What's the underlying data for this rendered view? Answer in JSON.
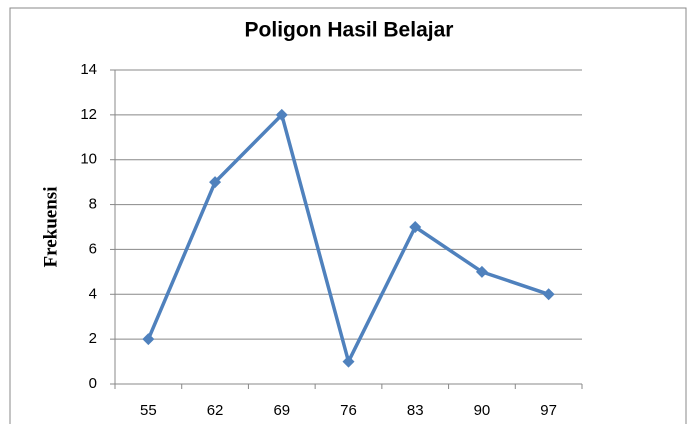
{
  "chart_data": {
    "type": "line",
    "title": "Poligon Hasil Belajar",
    "y_label": "Frekuensi",
    "categories": [
      "55",
      "62",
      "69",
      "76",
      "83",
      "90",
      "97"
    ],
    "series": [
      {
        "name": "Frekuensi",
        "color": "#4f81bd",
        "values": [
          2,
          9,
          12,
          1,
          7,
          5,
          4
        ]
      }
    ],
    "ylim": [
      0,
      14
    ],
    "yticks": [
      0,
      2,
      4,
      6,
      8,
      10,
      12,
      14
    ],
    "grid": true
  }
}
